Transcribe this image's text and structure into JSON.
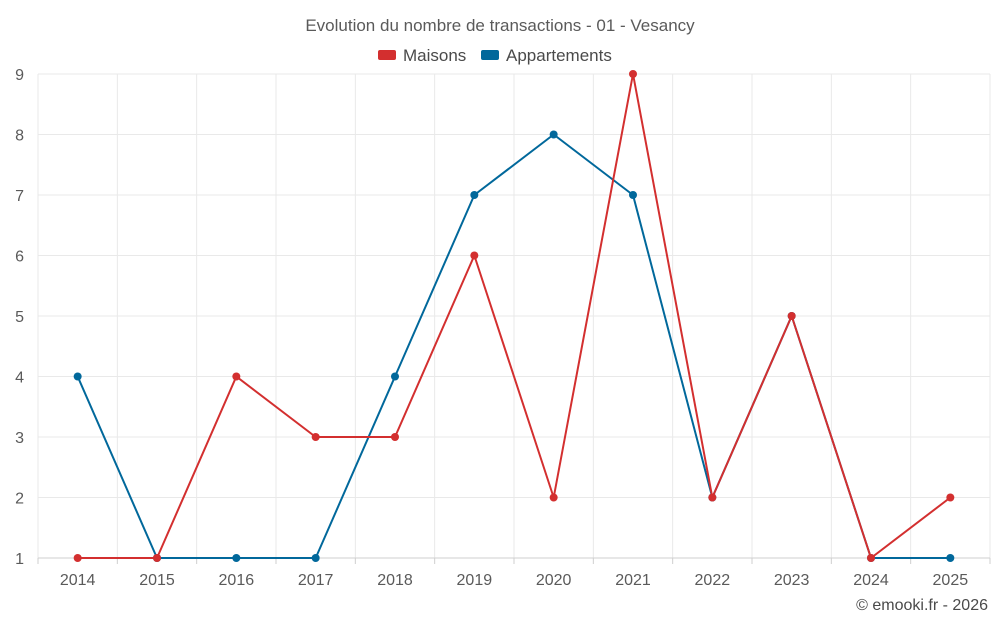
{
  "chart_data": {
    "type": "line",
    "title": "Evolution du nombre de transactions - 01 - Vesancy",
    "categories": [
      "2014",
      "2015",
      "2016",
      "2017",
      "2018",
      "2019",
      "2020",
      "2021",
      "2022",
      "2023",
      "2024",
      "2025"
    ],
    "ylim": [
      1,
      9
    ],
    "yticks": [
      1,
      2,
      3,
      4,
      5,
      6,
      7,
      8,
      9
    ],
    "grid": true,
    "legend_position": "top-center",
    "series": [
      {
        "name": "Maisons",
        "color": "#d32f2f",
        "values": [
          1,
          1,
          4,
          3,
          3,
          6,
          2,
          9,
          2,
          5,
          1,
          2
        ]
      },
      {
        "name": "Appartements",
        "color": "#01689b",
        "values": [
          4,
          1,
          1,
          1,
          4,
          7,
          8,
          7,
          2,
          5,
          1,
          1
        ]
      }
    ]
  },
  "credit": "© emooki.fr - 2026"
}
